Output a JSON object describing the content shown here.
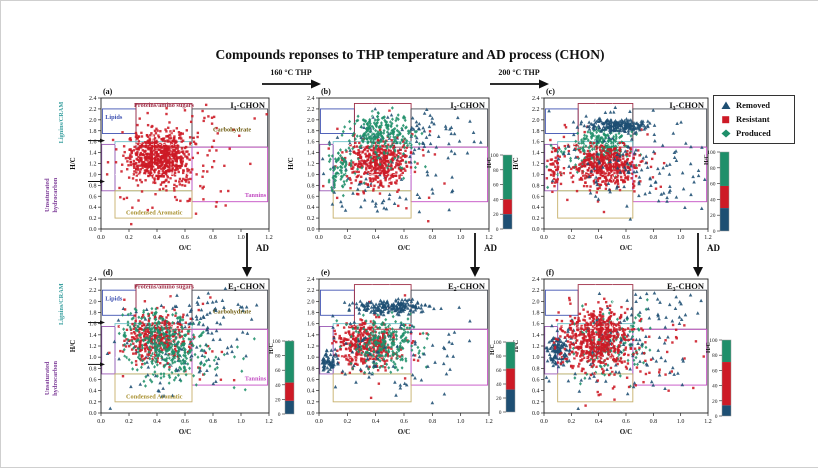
{
  "title": "Compounds reponses to THP temperature and AD process (CHON)",
  "flow": {
    "thp160": "160 °C THP",
    "thp200": "200 °C THP",
    "ad": "AD"
  },
  "chart_data": {
    "type": "scatter",
    "figure_title": "Compounds reponses to THP temperature and AD process (CHON)",
    "x_axis": {
      "label": "O/C",
      "min": 0,
      "max": 1.2,
      "ticks": [
        0.0,
        0.2,
        0.4,
        0.6,
        0.8,
        1.0,
        1.2
      ]
    },
    "y_axis": {
      "label": "H/C",
      "min": 0,
      "max": 2.4,
      "ticks": [
        0.0,
        0.2,
        0.4,
        0.6,
        0.8,
        1.0,
        1.2,
        1.4,
        1.6,
        1.8,
        2.0,
        2.2,
        2.4
      ]
    },
    "series": {
      "removed": {
        "label": "Removed",
        "marker": "triangle",
        "color": "#1e4f73"
      },
      "resistant": {
        "label": "Resistant",
        "marker": "square",
        "color": "#cd1a26"
      },
      "produced": {
        "label": "Produced",
        "marker": "diamond",
        "color": "#1f8f6a"
      }
    },
    "legend_order": [
      "removed",
      "resistant",
      "produced"
    ],
    "colorbar_axis": {
      "title": "H/C",
      "ticks": [
        0,
        20,
        40,
        60,
        80,
        100
      ]
    },
    "van_krevelen_regions": [
      {
        "key": "lipids",
        "x1": 0.01,
        "x2": 0.25,
        "y1": 1.75,
        "y2": 2.2,
        "color": "#4053b3"
      },
      {
        "key": "proteins",
        "x1": 0.25,
        "x2": 0.65,
        "y1": 1.5,
        "y2": 2.3,
        "color": "#a03048"
      },
      {
        "key": "carbohydrate",
        "x1": 0.65,
        "x2": 1.19,
        "y1": 1.5,
        "y2": 2.2,
        "color": "#4a4f57"
      },
      {
        "key": "lignins",
        "x1": 0.1,
        "x2": 0.65,
        "y1": 0.7,
        "y2": 1.6,
        "color": "#6cc0c8"
      },
      {
        "key": "unsaturated",
        "x1": 0.005,
        "x2": 0.1,
        "y1": 0.7,
        "y2": 1.55,
        "color": "#9b59b6"
      },
      {
        "key": "tannins",
        "x1": 0.65,
        "x2": 1.19,
        "y1": 0.5,
        "y2": 1.5,
        "color": "#c44fc4"
      },
      {
        "key": "condensed",
        "x1": 0.1,
        "x2": 0.65,
        "y1": 0.2,
        "y2": 0.7,
        "color": "#c7b06a"
      }
    ],
    "region_labels": [
      {
        "key": "proteins",
        "text": "Proteins/amino sugars",
        "x": 0.45,
        "y": 2.27,
        "color": "#a03048",
        "anchor": "middle"
      },
      {
        "key": "lipids",
        "text": "Lipids",
        "x": 0.03,
        "y": 2.05,
        "color": "#4053b3",
        "anchor": "start"
      },
      {
        "key": "carbohydrate",
        "text": "Carbohydrate",
        "x": 0.8,
        "y": 1.82,
        "color": "#6e5c10",
        "anchor": "start"
      },
      {
        "key": "tannins",
        "text": "Tannins",
        "x": 1.18,
        "y": 0.62,
        "color": "#c44fc4",
        "anchor": "end"
      },
      {
        "key": "condensed",
        "text": "Condensed Aromatic",
        "x": 0.38,
        "y": 0.3,
        "color": "#a8902f",
        "anchor": "middle"
      }
    ],
    "outside_labels": {
      "lignins_cram": {
        "text": "Lignins/CRAM",
        "color": "#3aa0a0",
        "center_hc": 1.95
      },
      "unsaturated": {
        "lines": [
          "Unsaturated",
          "hydrocarbon"
        ],
        "color": "#7d3c98",
        "center_hc": 0.62
      },
      "boundary_arrows_hc": [
        1.62,
        0.87
      ]
    },
    "panels": [
      {
        "id": "a",
        "label": "(a)",
        "title": {
          "base": "I",
          "sub": "1",
          "rest": "-CHON"
        },
        "show_region_labels": true,
        "colorbar": null,
        "order": [
          "resistant"
        ],
        "clusters": {
          "resistant": [
            [
              600,
              0.42,
              1.32,
              0.105,
              0.21
            ],
            [
              130,
              0.45,
              1.25,
              0.2,
              0.42
            ],
            [
              55,
              0.62,
              1.3,
              0.3,
              0.55
            ]
          ]
        }
      },
      {
        "id": "b",
        "label": "(b)",
        "title": {
          "base": "I",
          "sub": "2",
          "rest": "-CHON"
        },
        "show_region_labels": false,
        "colorbar": {
          "segments": [
            [
              "produced",
              100,
              40
            ],
            [
              "resistant",
              40,
              20
            ],
            [
              "removed",
              20,
              0
            ]
          ]
        },
        "order": [
          "removed",
          "resistant",
          "produced"
        ],
        "clusters": {
          "removed": [
            [
              80,
              0.55,
              1.25,
              0.27,
              0.48
            ],
            [
              45,
              0.75,
              1.75,
              0.18,
              0.22
            ],
            [
              25,
              0.35,
              0.55,
              0.15,
              0.18
            ]
          ],
          "resistant": [
            [
              380,
              0.42,
              1.22,
              0.1,
              0.19
            ],
            [
              70,
              0.45,
              1.2,
              0.19,
              0.38
            ]
          ],
          "produced": [
            [
              200,
              0.45,
              1.78,
              0.1,
              0.16
            ],
            [
              70,
              0.14,
              1.05,
              0.035,
              0.22
            ],
            [
              70,
              0.42,
              1.45,
              0.16,
              0.3
            ]
          ]
        }
      },
      {
        "id": "c",
        "label": "(c)",
        "title": {
          "base": "I",
          "sub": "3",
          "rest": "-CHON"
        },
        "show_region_labels": false,
        "colorbar": {
          "segments": [
            [
              "produced",
              100,
              57
            ],
            [
              "resistant",
              57,
              29
            ],
            [
              "removed",
              29,
              0
            ]
          ]
        },
        "order": [
          "produced",
          "resistant",
          "removed"
        ],
        "clusters": {
          "produced": [
            [
              200,
              0.42,
              1.55,
              0.09,
              0.14
            ],
            [
              60,
              0.35,
              1.35,
              0.15,
              0.25
            ]
          ],
          "resistant": [
            [
              400,
              0.45,
              1.15,
              0.11,
              0.17
            ],
            [
              80,
              0.42,
              1.25,
              0.2,
              0.35
            ],
            [
              45,
              0.07,
              1.1,
              0.03,
              0.18
            ]
          ],
          "removed": [
            [
              190,
              0.52,
              1.9,
              0.12,
              0.06
            ],
            [
              110,
              0.6,
              1.3,
              0.3,
              0.45
            ],
            [
              30,
              0.9,
              0.8,
              0.18,
              0.25
            ]
          ]
        }
      },
      {
        "id": "d",
        "label": "(d)",
        "title": {
          "base": "E",
          "sub": "1",
          "rest": "-CHON"
        },
        "show_region_labels": true,
        "colorbar": {
          "segments": [
            [
              "produced",
              100,
              43
            ],
            [
              "resistant",
              43,
              18
            ],
            [
              "removed",
              18,
              0
            ]
          ]
        },
        "order": [
          "removed",
          "resistant",
          "produced"
        ],
        "clusters": {
          "removed": [
            [
              120,
              0.55,
              1.15,
              0.28,
              0.42
            ],
            [
              40,
              0.8,
              1.8,
              0.17,
              0.2
            ]
          ],
          "resistant": [
            [
              300,
              0.4,
              1.35,
              0.1,
              0.2
            ],
            [
              60,
              0.45,
              1.3,
              0.2,
              0.4
            ]
          ],
          "produced": [
            [
              260,
              0.47,
              1.15,
              0.13,
              0.26
            ],
            [
              70,
              0.32,
              1.6,
              0.1,
              0.18
            ],
            [
              50,
              0.65,
              0.95,
              0.2,
              0.25
            ]
          ]
        }
      },
      {
        "id": "e",
        "label": "(e)",
        "title": {
          "base": "E",
          "sub": "2",
          "rest": "-CHON"
        },
        "show_region_labels": false,
        "colorbar": {
          "segments": [
            [
              "produced",
              100,
              62
            ],
            [
              "resistant",
              62,
              32
            ],
            [
              "removed",
              32,
              0
            ]
          ]
        },
        "order": [
          "resistant",
          "produced",
          "removed"
        ],
        "clusters": {
          "resistant": [
            [
              360,
              0.33,
              1.22,
              0.1,
              0.2
            ],
            [
              60,
              0.4,
              1.2,
              0.2,
              0.35
            ]
          ],
          "produced": [
            [
              240,
              0.46,
              1.25,
              0.12,
              0.22
            ]
          ],
          "removed": [
            [
              180,
              0.5,
              1.9,
              0.13,
              0.055
            ],
            [
              65,
              0.07,
              0.92,
              0.03,
              0.1
            ],
            [
              80,
              0.6,
              1.1,
              0.3,
              0.42
            ]
          ]
        }
      },
      {
        "id": "f",
        "label": "(f)",
        "title": {
          "base": "E",
          "sub": "3",
          "rest": "-CHON"
        },
        "show_region_labels": false,
        "colorbar": {
          "segments": [
            [
              "produced",
              100,
              71
            ],
            [
              "resistant",
              71,
              14
            ],
            [
              "removed",
              14,
              0
            ]
          ]
        },
        "order": [
          "produced",
          "removed",
          "resistant"
        ],
        "clusters": {
          "produced": [
            [
              170,
              0.5,
              1.25,
              0.13,
              0.3
            ]
          ],
          "removed": [
            [
              120,
              0.1,
              1.1,
              0.05,
              0.14
            ],
            [
              110,
              0.55,
              1.25,
              0.3,
              0.5
            ],
            [
              25,
              0.9,
              1.9,
              0.15,
              0.15
            ]
          ],
          "resistant": [
            [
              500,
              0.38,
              1.35,
              0.12,
              0.27
            ],
            [
              90,
              0.55,
              1.1,
              0.28,
              0.4
            ]
          ]
        }
      }
    ]
  }
}
